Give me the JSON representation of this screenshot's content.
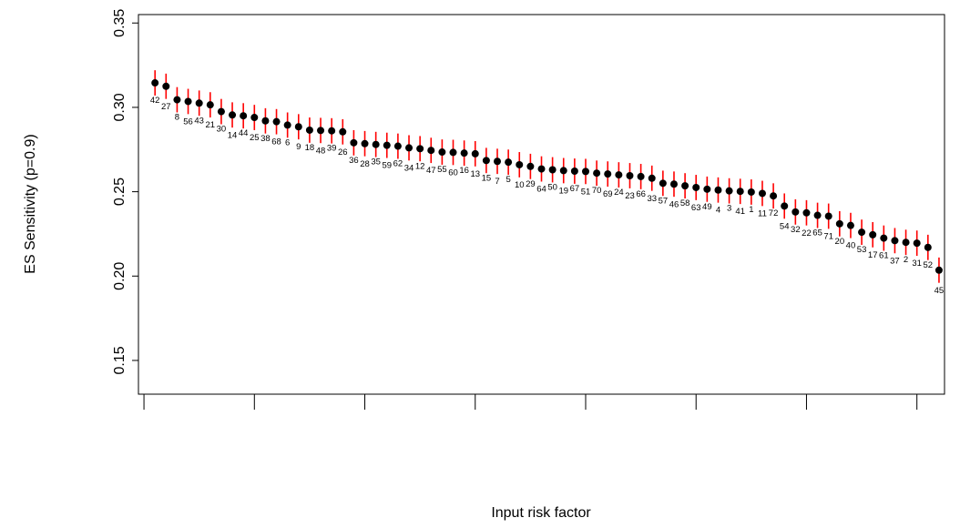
{
  "chart_data": {
    "type": "scatter",
    "title": "",
    "xlabel": "Input risk factor",
    "ylabel": "ES Sensitivity (p=0.9)",
    "ylim": [
      0.13,
      0.355
    ],
    "xlim": [
      -0.5,
      72.5
    ],
    "y_ticks": [
      0.15,
      0.2,
      0.25,
      0.3,
      0.35
    ],
    "y_tick_labels": [
      "0.15",
      "0.20",
      "0.25",
      "0.30",
      "0.35"
    ],
    "x_ticks": [
      0,
      10,
      20,
      30,
      40,
      50,
      60,
      70
    ],
    "x_tick_labels": [
      "",
      "",
      "",
      "",
      "",
      "",
      "",
      ""
    ],
    "grid": false,
    "colors": {
      "point": "#000000",
      "error_bar": "#ff0000"
    },
    "series": [
      {
        "labels": [
          "42",
          "27",
          "8",
          "56",
          "43",
          "21",
          "30",
          "14",
          "44",
          "25",
          "38",
          "68",
          "6",
          "9",
          "18",
          "48",
          "39",
          "26",
          "36",
          "28",
          "35",
          "59",
          "62",
          "34",
          "12",
          "47",
          "55",
          "60",
          "16",
          "13",
          "15",
          "7",
          "5",
          "10",
          "29",
          "64",
          "50",
          "19",
          "67",
          "51",
          "70",
          "69",
          "24",
          "23",
          "66",
          "33",
          "57",
          "46",
          "58",
          "63",
          "49",
          "4",
          "3",
          "41",
          "1",
          "11",
          "72",
          "54",
          "32",
          "22",
          "65",
          "71",
          "20",
          "40",
          "53",
          "17",
          "61",
          "37",
          "2",
          "31",
          "52",
          "45"
        ],
        "values": [
          0.3145,
          0.3125,
          0.3045,
          0.3035,
          0.3025,
          0.3015,
          0.2975,
          0.2955,
          0.295,
          0.294,
          0.292,
          0.2915,
          0.2895,
          0.2885,
          0.2865,
          0.2863,
          0.2861,
          0.2855,
          0.279,
          0.2785,
          0.278,
          0.2775,
          0.277,
          0.276,
          0.2755,
          0.2745,
          0.2735,
          0.2733,
          0.2729,
          0.2725,
          0.2685,
          0.268,
          0.2675,
          0.266,
          0.265,
          0.2635,
          0.263,
          0.2625,
          0.2622,
          0.262,
          0.261,
          0.2605,
          0.26,
          0.2595,
          0.259,
          0.258,
          0.255,
          0.2545,
          0.2535,
          0.2525,
          0.2515,
          0.251,
          0.2505,
          0.2502,
          0.2498,
          0.249,
          0.2475,
          0.2415,
          0.238,
          0.2375,
          0.236,
          0.2355,
          0.231,
          0.23,
          0.226,
          0.2245,
          0.2225,
          0.221,
          0.22,
          0.2195,
          0.217,
          0.2035
        ],
        "error": 0.0075
      }
    ]
  }
}
